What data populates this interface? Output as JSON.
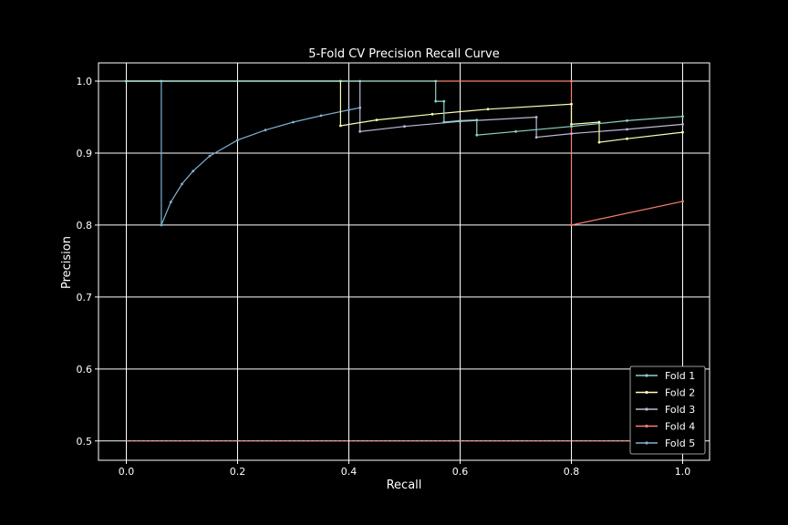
{
  "chart_data": {
    "type": "line",
    "title": "5-Fold CV Precision Recall Curve",
    "xlabel": "Recall",
    "ylabel": "Precision",
    "xlim": [
      -0.05,
      1.05
    ],
    "ylim": [
      0.475,
      1.025
    ],
    "xticks": [
      "0.0",
      "0.2",
      "0.4",
      "0.6",
      "0.8",
      "1.0"
    ],
    "yticks": [
      "0.5",
      "0.6",
      "0.7",
      "0.8",
      "0.9",
      "1.0"
    ],
    "grid": true,
    "legend_position": "lower-right",
    "baseline": 0.5,
    "series": [
      {
        "name": "Fold 1",
        "color": "#8dd3c7",
        "points": [
          [
            0,
            1.0
          ],
          [
            0.556,
            1.0
          ],
          [
            0.556,
            0.972
          ],
          [
            0.571,
            0.972
          ],
          [
            0.571,
            0.943
          ],
          [
            0.6,
            0.945
          ],
          [
            0.63,
            0.946
          ],
          [
            0.63,
            0.925
          ],
          [
            0.7,
            0.93
          ],
          [
            0.8,
            0.937
          ],
          [
            0.9,
            0.945
          ],
          [
            1.0,
            0.951
          ]
        ]
      },
      {
        "name": "Fold 2",
        "color": "#ffffb3",
        "points": [
          [
            0,
            1.0
          ],
          [
            0.385,
            1.0
          ],
          [
            0.385,
            0.938
          ],
          [
            0.45,
            0.946
          ],
          [
            0.55,
            0.954
          ],
          [
            0.65,
            0.961
          ],
          [
            0.8,
            0.968
          ],
          [
            0.8,
            0.94
          ],
          [
            0.85,
            0.943
          ],
          [
            0.85,
            0.915
          ],
          [
            0.9,
            0.92
          ],
          [
            1.0,
            0.929
          ]
        ]
      },
      {
        "name": "Fold 3",
        "color": "#bebada",
        "points": [
          [
            0,
            1.0
          ],
          [
            0.42,
            1.0
          ],
          [
            0.42,
            0.93
          ],
          [
            0.5,
            0.937
          ],
          [
            0.6,
            0.944
          ],
          [
            0.737,
            0.95
          ],
          [
            0.737,
            0.922
          ],
          [
            0.8,
            0.927
          ],
          [
            0.9,
            0.933
          ],
          [
            1.0,
            0.94
          ]
        ]
      },
      {
        "name": "Fold 4",
        "color": "#fb8072",
        "points": [
          [
            0,
            1.0
          ],
          [
            0.8,
            1.0
          ],
          [
            0.8,
            0.8
          ],
          [
            1.0,
            0.833
          ]
        ]
      },
      {
        "name": "Fold 5",
        "color": "#80b1d3",
        "points": [
          [
            0,
            1.0
          ],
          [
            0.063,
            1.0
          ],
          [
            0.063,
            0.8
          ],
          [
            0.08,
            0.832
          ],
          [
            0.1,
            0.857
          ],
          [
            0.12,
            0.875
          ],
          [
            0.15,
            0.896
          ],
          [
            0.2,
            0.918
          ],
          [
            0.25,
            0.932
          ],
          [
            0.3,
            0.943
          ],
          [
            0.35,
            0.952
          ],
          [
            0.4,
            0.96
          ],
          [
            0.42,
            0.963
          ]
        ]
      }
    ]
  }
}
